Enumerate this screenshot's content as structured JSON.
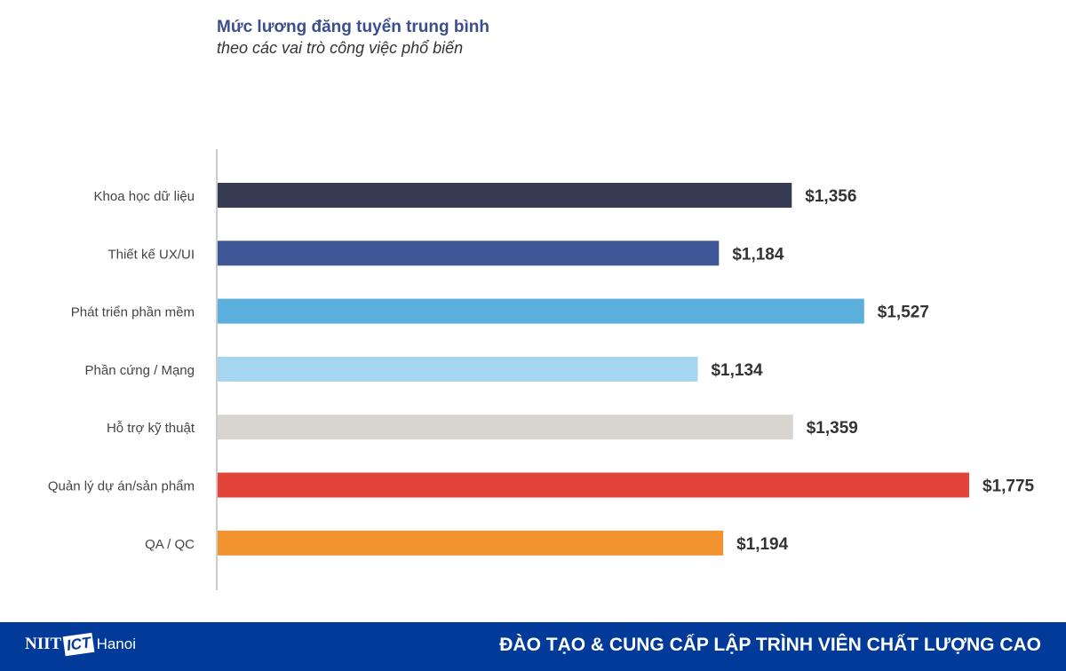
{
  "chart_data": {
    "type": "bar",
    "orientation": "horizontal",
    "title": "Mức lương đăng tuyển trung bình",
    "subtitle": "theo các vai trò công việc phổ biến",
    "categories": [
      "Khoa học dữ liệu",
      "Thiết kế UX/UI",
      "Phát triển phần mềm",
      "Phần cứng / Mạng",
      "Hỗ trợ kỹ thuật",
      "Quản lý dự án/sản phẩm",
      "QA / QC"
    ],
    "values": [
      1356,
      1184,
      1527,
      1134,
      1359,
      1775,
      1194
    ],
    "data_labels": [
      "$1,356",
      "$1,184",
      "$1,527",
      "$1,134",
      "$1,359",
      "$1,775",
      "$1,194"
    ],
    "colors": [
      "#363a52",
      "#3f5796",
      "#5bafdc",
      "#a5d5f0",
      "#d8d4cf",
      "#e3443a",
      "#f0922e"
    ],
    "xlim": [
      0,
      1775
    ],
    "grid": false
  },
  "footer": {
    "logo_niit": "NIIT",
    "logo_ict": "ICT",
    "logo_city": "Hanoi",
    "slogan": "ĐÀO TẠO & CUNG CẤP LẬP TRÌNH VIÊN CHẤT LƯỢNG CAO",
    "bg": "#023a9a"
  }
}
